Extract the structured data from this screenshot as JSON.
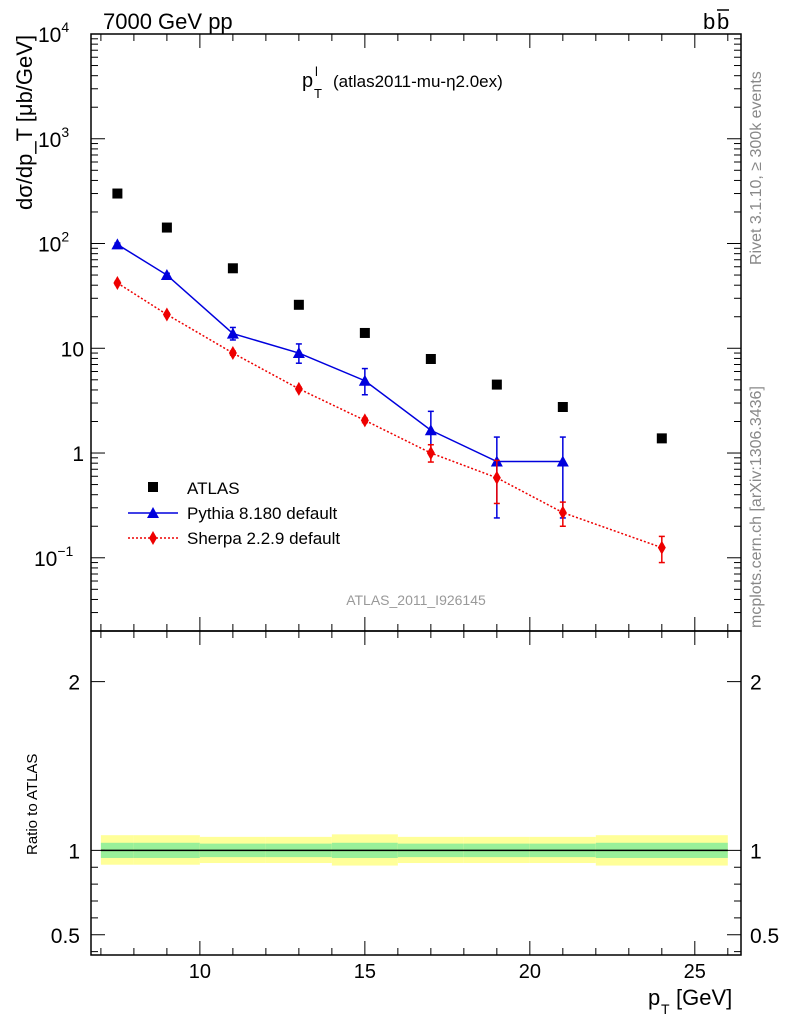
{
  "header": {
    "left": "7000 GeV pp",
    "right": "b",
    "right_bar": "b"
  },
  "side_labels": {
    "rivet": "Rivet 3.1.10, ≥ 300k events",
    "mcplots": "mcplots.cern.ch [arXiv:1306.3436]"
  },
  "chart_data": [
    {
      "type": "scatter",
      "title": {
        "main": "p",
        "sup": "l",
        "sub": "T",
        "extra": "(atlas2011-mu-η2.0ex)"
      },
      "ylabel": "dσ/dp_T [μb/GeV]",
      "yscale": "log",
      "ylim": [
        0.02,
        10000
      ],
      "xlim": [
        6.7,
        26.4
      ],
      "y_ticks": [
        {
          "value": 0.1,
          "base": "10",
          "exp": "−1"
        },
        {
          "value": 1,
          "base": "1",
          "exp": ""
        },
        {
          "value": 10,
          "base": "10",
          "exp": ""
        },
        {
          "value": 100,
          "base": "10",
          "exp": "2"
        },
        {
          "value": 1000,
          "base": "10",
          "exp": "3"
        },
        {
          "value": 10000,
          "base": "10",
          "exp": "4"
        }
      ],
      "analysis_label": "ATLAS_2011_I926145",
      "legend": [
        "ATLAS",
        "Pythia 8.180 default",
        "Sherpa 2.2.9 default"
      ],
      "series": [
        {
          "name": "ATLAS",
          "color": "#000000",
          "marker": "square",
          "x": [
            7.5,
            9,
            11,
            13,
            15,
            17,
            19,
            21,
            24
          ],
          "y": [
            300,
            142,
            58,
            26,
            14,
            7.9,
            4.5,
            2.75,
            1.38
          ]
        },
        {
          "name": "Pythia 8.180 default",
          "color": "#0000dd",
          "marker": "triangle",
          "line": "solid",
          "x": [
            7.5,
            9,
            11,
            13,
            15,
            17,
            19,
            21
          ],
          "y": [
            98,
            50,
            13.8,
            9.0,
            4.9,
            1.65,
            0.83,
            0.83
          ],
          "err": [
            [
              95,
              101
            ],
            [
              48,
              52
            ],
            [
              12.0,
              15.8
            ],
            [
              7.2,
              11.0
            ],
            [
              3.6,
              6.4
            ],
            [
              1.0,
              2.5
            ],
            [
              0.24,
              1.42
            ],
            [
              0.24,
              1.42
            ]
          ]
        },
        {
          "name": "Sherpa 2.2.9 default",
          "color": "#ee0000",
          "marker": "diamond",
          "line": "dotted",
          "x": [
            7.5,
            9,
            11,
            13,
            15,
            17,
            19,
            21,
            24
          ],
          "y": [
            42,
            21,
            9.0,
            4.1,
            2.05,
            1.0,
            0.58,
            0.27,
            0.125
          ],
          "err": [
            [
              40.5,
              43.5
            ],
            [
              20.3,
              21.7
            ],
            [
              8.6,
              9.4
            ],
            [
              3.95,
              4.25
            ],
            [
              1.95,
              2.15
            ],
            [
              0.82,
              1.2
            ],
            [
              0.33,
              0.85
            ],
            [
              0.2,
              0.34
            ],
            [
              0.09,
              0.16
            ]
          ]
        }
      ]
    },
    {
      "type": "area",
      "ylabel": "Ratio to ATLAS",
      "xlabel": "p_T [GeV]",
      "ylim": [
        0.38,
        2.3
      ],
      "xlim": [
        6.7,
        26.4
      ],
      "x_ticks": [
        10,
        15,
        20,
        25
      ],
      "y_ticks": [
        0.5,
        1,
        2
      ],
      "reference": 1,
      "bands": {
        "edges": [
          7,
          8,
          10,
          12,
          14,
          16,
          18,
          20,
          22,
          26
        ],
        "inner_lo": [
          0.955,
          0.955,
          0.96,
          0.96,
          0.955,
          0.96,
          0.96,
          0.96,
          0.955
        ],
        "inner_hi": [
          1.045,
          1.045,
          1.04,
          1.04,
          1.045,
          1.04,
          1.04,
          1.04,
          1.045
        ],
        "outer_lo": [
          0.915,
          0.915,
          0.925,
          0.925,
          0.91,
          0.925,
          0.925,
          0.925,
          0.91
        ],
        "outer_hi": [
          1.09,
          1.09,
          1.08,
          1.08,
          1.095,
          1.08,
          1.08,
          1.08,
          1.09
        ],
        "inner_color": "#99f099",
        "outer_color": "#ffff99"
      }
    }
  ]
}
